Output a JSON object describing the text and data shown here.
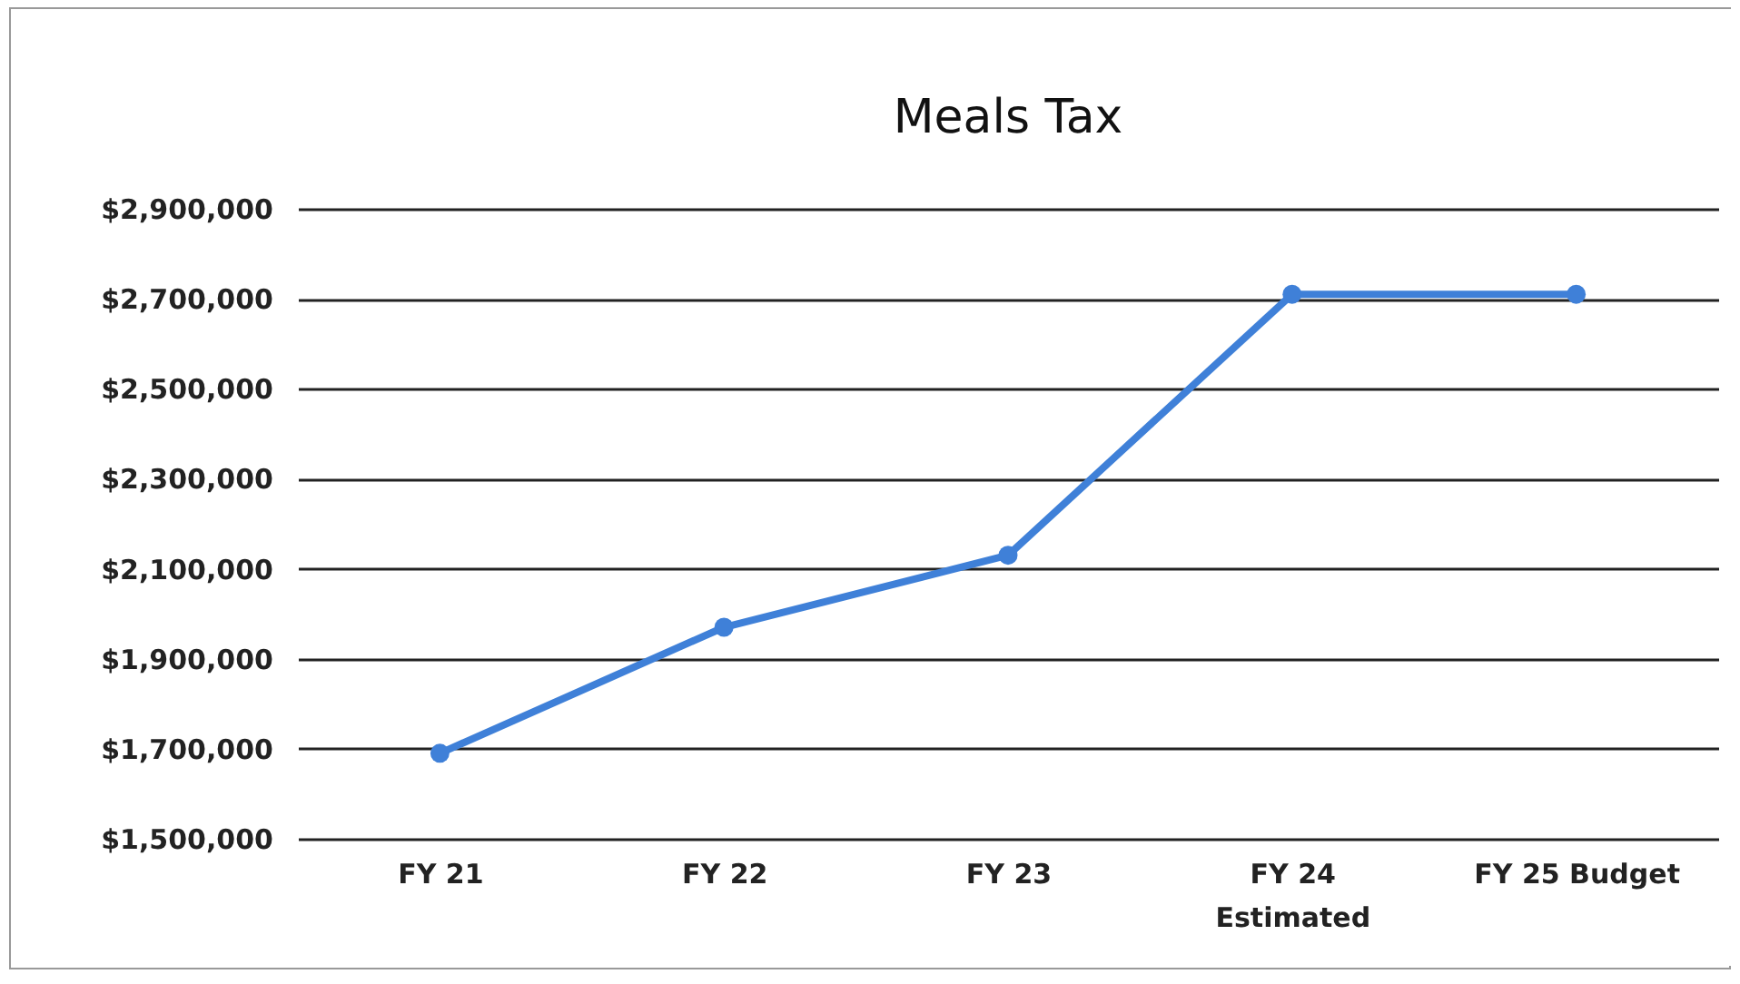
{
  "chart_data": {
    "type": "line",
    "title": "Meals Tax",
    "categories": [
      "FY 21",
      "FY 22",
      "FY 23",
      "FY 24\nEstimated",
      "FY 25 Budget"
    ],
    "series": [
      {
        "color": "#3f80d8",
        "values": [
          1690000,
          1970000,
          2130000,
          2710000,
          2710000
        ]
      }
    ],
    "ylim": [
      1500000,
      2900000
    ],
    "yticks": [
      {
        "value": 1500000,
        "label": "$1,500,000"
      },
      {
        "value": 1700000,
        "label": "$1,700,000"
      },
      {
        "value": 1900000,
        "label": "$1,900,000"
      },
      {
        "value": 2100000,
        "label": "$2,100,000"
      },
      {
        "value": 2300000,
        "label": "$2,300,000"
      },
      {
        "value": 2500000,
        "label": "$2,500,000"
      },
      {
        "value": 2700000,
        "label": "$2,700,000"
      },
      {
        "value": 2900000,
        "label": "$2,900,000"
      }
    ],
    "grid": "y",
    "marker": "circle",
    "line_style": "solid",
    "legend": false
  }
}
